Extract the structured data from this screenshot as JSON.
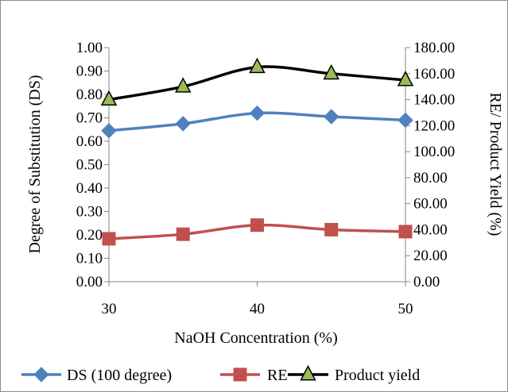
{
  "chart_data": {
    "type": "line",
    "title": "",
    "xlabel": "NaOH Concentration (%)",
    "ylabel_left": "Degree of Substitution (DS)",
    "ylabel_right": "RE/ Product Yield (%)",
    "x": [
      30,
      35,
      40,
      45,
      50
    ],
    "x_ticks": [
      "30",
      "40",
      "50"
    ],
    "xlim": [
      30,
      50
    ],
    "ylim_left": [
      0,
      1.0
    ],
    "ylim_right": [
      0,
      180
    ],
    "y_ticks_left": [
      "0.00",
      "0.10",
      "0.20",
      "0.30",
      "0.40",
      "0.50",
      "0.60",
      "0.70",
      "0.80",
      "0.90",
      "1.00"
    ],
    "y_ticks_right": [
      "0.00",
      "20.00",
      "40.00",
      "60.00",
      "80.00",
      "100.00",
      "120.00",
      "140.00",
      "160.00",
      "180.00"
    ],
    "grid": false,
    "legend_position": "bottom",
    "series": [
      {
        "name": "DS (100 degree)",
        "axis": "left",
        "values": [
          0.645,
          0.675,
          0.72,
          0.705,
          0.69
        ],
        "color": "#4f81bd",
        "marker": "diamond"
      },
      {
        "name": "RE",
        "axis": "right",
        "values": [
          33,
          36.5,
          43.5,
          40,
          38.5
        ],
        "color": "#c0504d",
        "marker": "square"
      },
      {
        "name": "Product yield",
        "axis": "right",
        "values": [
          140,
          150,
          165,
          160,
          155
        ],
        "color": "#000000",
        "marker": "triangle",
        "marker_fill": "#9bbb59"
      }
    ]
  }
}
